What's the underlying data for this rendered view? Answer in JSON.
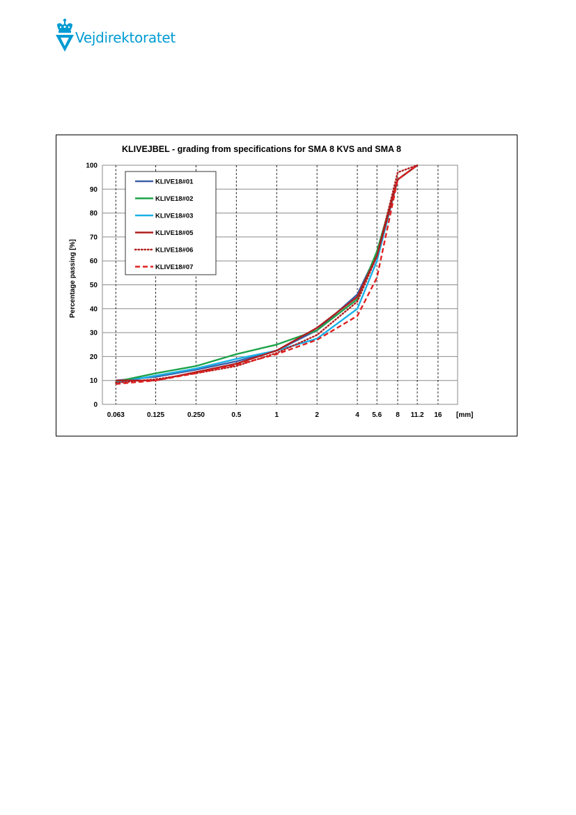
{
  "brand": {
    "name": "Vejdirektoratet",
    "color": "#009bd3",
    "icon": "crown-shield-icon"
  },
  "chart_data": {
    "type": "line",
    "title": "KLIVEJBEL  - grading from specifications for SMA 8 KVS and SMA 8",
    "xlabel": "[mm]",
    "ylabel": "Percentage passing  [%]",
    "x_scale": "log",
    "categories": [
      "0.063",
      "0.125",
      "0.250",
      "0.5",
      "1",
      "2",
      "4",
      "5.6",
      "8",
      "11.2",
      "16"
    ],
    "x": [
      0.063,
      0.125,
      0.25,
      0.5,
      1,
      2,
      4,
      5.6,
      8,
      11.2,
      16
    ],
    "ylim": [
      0,
      100
    ],
    "yticks": [
      0,
      10,
      20,
      30,
      40,
      50,
      60,
      70,
      80,
      90,
      100
    ],
    "grid": true,
    "legend_position": "top-left",
    "series": [
      {
        "name": "KLIVE18#01",
        "color": "#3a5fa8",
        "dash": "solid",
        "values": [
          10,
          11.5,
          14.5,
          18,
          22.5,
          31,
          46,
          63,
          94,
          100,
          null
        ]
      },
      {
        "name": "KLIVE18#02",
        "color": "#1da24a",
        "dash": "solid",
        "values": [
          9.5,
          13,
          16,
          21,
          25,
          31,
          44,
          64,
          94,
          100,
          null
        ]
      },
      {
        "name": "KLIVE18#03",
        "color": "#1ab0e6",
        "dash": "solid",
        "values": [
          9,
          12,
          15,
          19,
          22.5,
          27.5,
          40,
          60,
          94,
          100,
          null
        ]
      },
      {
        "name": "KLIVE18#05",
        "color": "#b01d1d",
        "dash": "solid",
        "values": [
          10,
          10,
          13.5,
          17,
          22.5,
          32,
          45,
          62,
          94,
          100,
          null
        ]
      },
      {
        "name": "KLIVE18#06",
        "color": "#b01d1d",
        "dash": "dotted",
        "values": [
          9,
          10.5,
          13,
          16,
          21.5,
          29,
          43,
          62,
          97,
          100,
          null
        ]
      },
      {
        "name": "KLIVE18#07",
        "color": "#e02020",
        "dash": "dashed",
        "values": [
          8.5,
          10,
          13,
          16.5,
          21,
          27,
          37,
          53,
          94,
          100,
          null
        ]
      }
    ]
  }
}
